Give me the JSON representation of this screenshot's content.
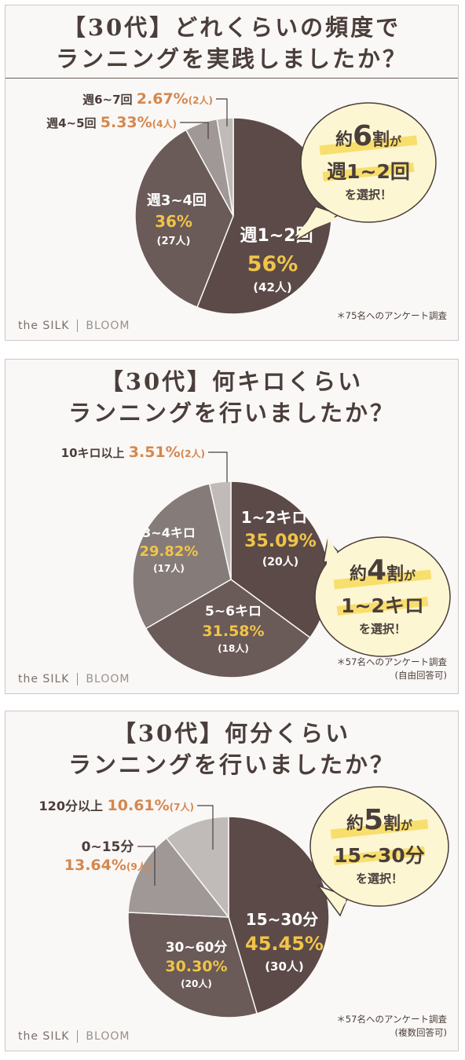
{
  "colors": {
    "darkest": "#5b4a48",
    "dark": "#6a5a58",
    "mid": "#857b79",
    "light": "#a09896",
    "lightest": "#c0bbb9",
    "gold": "#f1c447",
    "orange": "#d4874f",
    "text": "#4a3e3b",
    "bubble": "#fdf6d2",
    "highlight": "#f5d64a"
  },
  "brand": {
    "name": "the SILK",
    "sub": "BLOOM"
  },
  "chart_data": [
    {
      "type": "pie",
      "title": "【30代】どれくらいの頻度で",
      "subtitle": "ランニングを実践しましたか？",
      "labels": [
        "週1~2回",
        "週3~4回",
        "週4~5回",
        "週6~7回"
      ],
      "values": [
        56,
        36,
        5.33,
        2.67
      ],
      "percent_labels": [
        "56%",
        "36%",
        "5.33%",
        "2.67%"
      ],
      "counts": [
        "(42人)",
        "(27人)",
        "(4人)",
        "(2人)"
      ],
      "note": [
        "＊75名へのアンケート調査"
      ],
      "callout": {
        "pre": "約",
        "num": "6",
        "mid": "割",
        "post": "が",
        "line2": "週1~2回",
        "line3": "を選択！"
      }
    },
    {
      "type": "pie",
      "title": "【30代】何キロくらい",
      "subtitle": "ランニングを行いましたか？",
      "labels": [
        "1~2キロ",
        "5~6キロ",
        "3~4キロ",
        "10キロ以上"
      ],
      "values": [
        35.09,
        31.58,
        29.82,
        3.51
      ],
      "percent_labels": [
        "35.09%",
        "31.58%",
        "29.82%",
        "3.51%"
      ],
      "counts": [
        "(20人)",
        "(18人)",
        "(17人)",
        "(2人)"
      ],
      "note": [
        "＊57名へのアンケート調査",
        "(自由回答可)"
      ],
      "callout": {
        "pre": "約",
        "num": "4",
        "mid": "割",
        "post": "が",
        "line2": "1~2キロ",
        "line3": "を選択！"
      }
    },
    {
      "type": "pie",
      "title": "【30代】何分くらい",
      "subtitle": "ランニングを行いましたか？",
      "labels": [
        "15~30分",
        "30~60分",
        "0~15分",
        "120分以上"
      ],
      "values": [
        45.45,
        30.3,
        13.64,
        10.61
      ],
      "percent_labels": [
        "45.45%",
        "30.30%",
        "13.64%",
        "10.61%"
      ],
      "counts": [
        "(30人)",
        "(20人)",
        "(9人)",
        "(7人)"
      ],
      "note": [
        "＊57名へのアンケート調査",
        "(複数回答可)"
      ],
      "callout": {
        "pre": "約",
        "num": "5",
        "mid": "割",
        "post": "が",
        "line2": "15~30分",
        "line3": "を選択！"
      }
    }
  ]
}
